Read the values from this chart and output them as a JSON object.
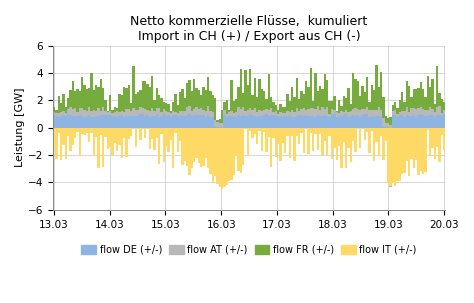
{
  "title_line1": "Netto kommerzielle Flüsse,  kumuliert",
  "title_line2": "Import in CH (+) / Export aus CH (-)",
  "ylabel": "Leistung [GW]",
  "ylim": [
    -6,
    6
  ],
  "yticks": [
    -6,
    -4,
    -2,
    0,
    2,
    4,
    6
  ],
  "colors": {
    "DE": "#8eb4e3",
    "AT": "#b8b8b8",
    "FR": "#76ac3d",
    "IT": "#ffd966"
  },
  "legend_labels": [
    "flow DE (+/-)",
    "flow AT (+/-)",
    "flow FR (+/-)",
    "flow IT (+/-)"
  ],
  "x_tick_labels": [
    "13.03",
    "14.03",
    "15.03",
    "16.03",
    "17.03",
    "18.03",
    "19.03",
    "20.03"
  ],
  "n_hours": 168,
  "background_color": "#ffffff",
  "grid_color": "#c8c8c8",
  "title_fontsize": 9,
  "label_fontsize": 8,
  "tick_fontsize": 7.5
}
